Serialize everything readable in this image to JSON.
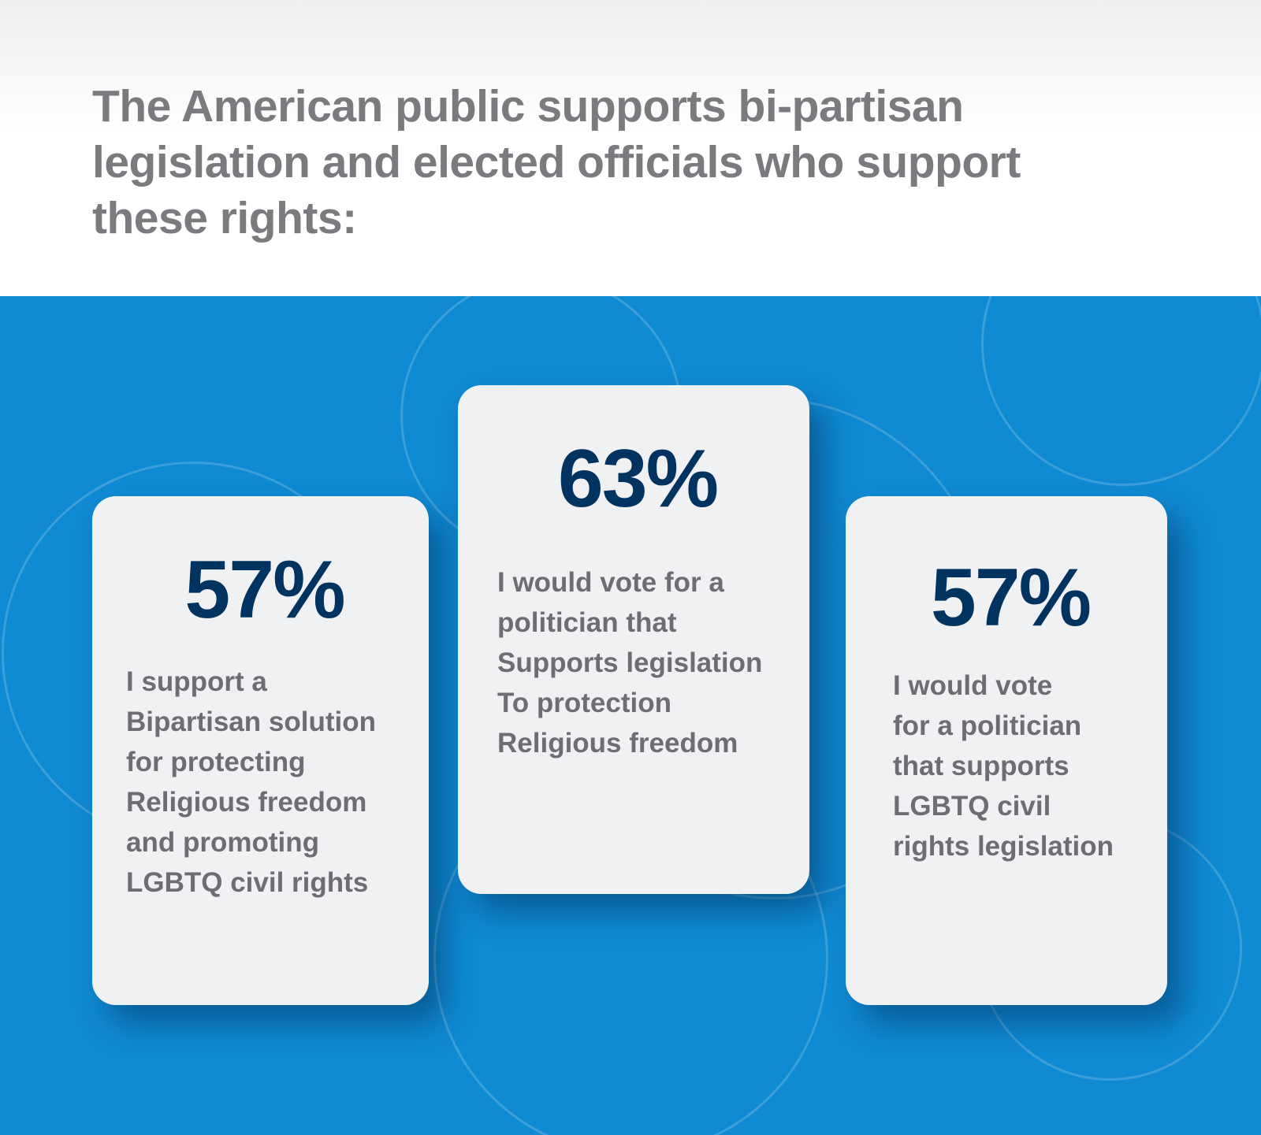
{
  "header": {
    "title": "The American public supports bi-partisan legislation and elected officials who support these rights:"
  },
  "colors": {
    "background_blue": "#0f8ad3",
    "percent_navy": "#00335f",
    "text_gray": "#6d6e71",
    "card_bg": "#f0f1f3"
  },
  "cards": [
    {
      "percent": "57%",
      "text": "I support a\nBipartisan solution\nfor protecting\nReligious freedom\nand promoting\nLGBTQ civil rights"
    },
    {
      "percent": "63%",
      "text": "I would vote for a\npolitician that\nSupports legislation\nTo protection\nReligious freedom"
    },
    {
      "percent": "57%",
      "text": "I would vote\nfor a politician\nthat supports\nLGBTQ civil\nrights legislation"
    }
  ]
}
